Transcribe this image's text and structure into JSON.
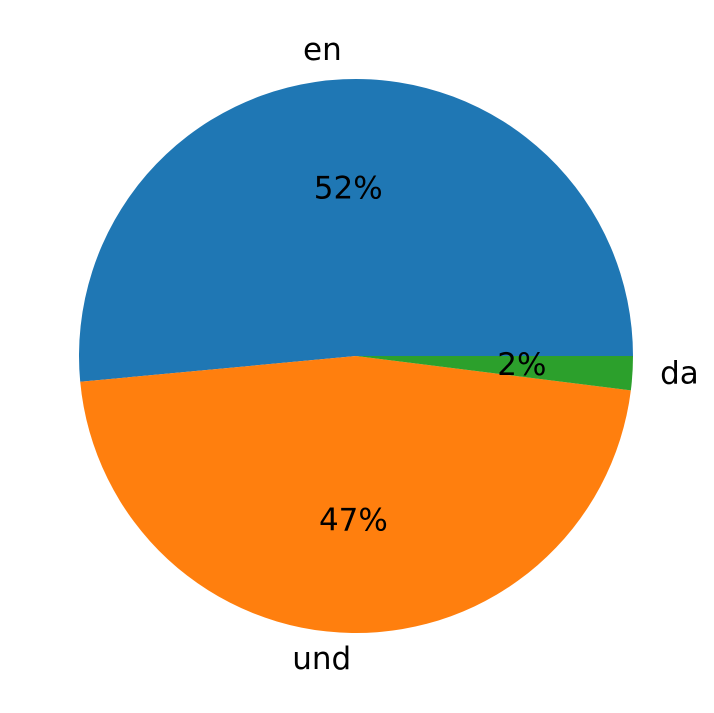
{
  "chart_data": {
    "type": "pie",
    "categories": [
      "en",
      "und",
      "da"
    ],
    "values": [
      52,
      47,
      2
    ],
    "value_labels": [
      "52%",
      "47%",
      "2%"
    ],
    "colors": [
      "#1f77b4",
      "#ff7f0e",
      "#2ca02c"
    ]
  }
}
